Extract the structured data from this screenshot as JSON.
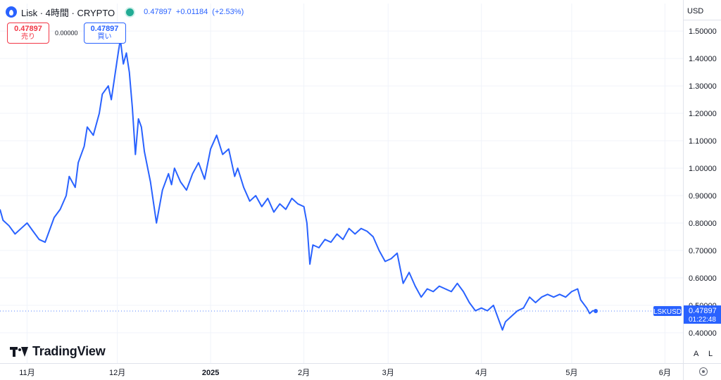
{
  "header": {
    "title": "Lisk · 4時間 · CRYPTO",
    "last": "0.47897",
    "change": "+0.01184",
    "change_pct": "(+2.53%)",
    "accent": "#2962ff",
    "live_color": "#22ab94"
  },
  "trade": {
    "sell_value": "0.47897",
    "sell_label": "売り",
    "spread": "0.00000",
    "buy_value": "0.47897",
    "buy_label": "買い",
    "sell_color": "#f23645",
    "buy_color": "#2962ff"
  },
  "currency": "USD",
  "branding": "TradingView",
  "scale_buttons": {
    "auto": "A",
    "log": "L"
  },
  "icons": {
    "logo": "lisk-drop-icon",
    "live": "live-status-icon",
    "settings": "gear-icon"
  },
  "chart_data": {
    "type": "line",
    "symbol": "LSKUSD",
    "line_color": "#2962ff",
    "ylim": [
      0.38,
      1.55
    ],
    "yticks": [
      "1.50000",
      "1.40000",
      "1.30000",
      "1.20000",
      "1.10000",
      "1.00000",
      "0.90000",
      "0.80000",
      "0.70000",
      "0.60000",
      "0.50000",
      "0.40000"
    ],
    "ytick_values": [
      1.5,
      1.4,
      1.3,
      1.2,
      1.1,
      1.0,
      0.9,
      0.8,
      0.7,
      0.6,
      0.5,
      0.4
    ],
    "xlim": [
      "2024-10-23",
      "2025-06-07"
    ],
    "xticks": [
      {
        "date": "2024-11-01",
        "label": "11月",
        "bold": false
      },
      {
        "date": "2024-12-01",
        "label": "12月",
        "bold": false
      },
      {
        "date": "2025-01-01",
        "label": "2025",
        "bold": true
      },
      {
        "date": "2025-02-01",
        "label": "2月",
        "bold": false
      },
      {
        "date": "2025-03-01",
        "label": "3月",
        "bold": false
      },
      {
        "date": "2025-04-01",
        "label": "4月",
        "bold": false
      },
      {
        "date": "2025-05-01",
        "label": "5月",
        "bold": false
      },
      {
        "date": "2025-06-01",
        "label": "6月",
        "bold": false
      }
    ],
    "grid": true,
    "last_price": "0.47897",
    "last_value": 0.47897,
    "countdown": "01:22:48",
    "series": [
      {
        "x": [
          "2024-10-23",
          "2024-10-24",
          "2024-10-26",
          "2024-10-28",
          "2024-10-30",
          "2024-11-01",
          "2024-11-03",
          "2024-11-05",
          "2024-11-07",
          "2024-11-08",
          "2024-11-10",
          "2024-11-12",
          "2024-11-14",
          "2024-11-15",
          "2024-11-17",
          "2024-11-18",
          "2024-11-20",
          "2024-11-21",
          "2024-11-23",
          "2024-11-25",
          "2024-11-26",
          "2024-11-28",
          "2024-11-29",
          "2024-12-01",
          "2024-12-02",
          "2024-12-03",
          "2024-12-04",
          "2024-12-05",
          "2024-12-06",
          "2024-12-07",
          "2024-12-08",
          "2024-12-09",
          "2024-12-10",
          "2024-12-12",
          "2024-12-14",
          "2024-12-16",
          "2024-12-18",
          "2024-12-19",
          "2024-12-20",
          "2024-12-22",
          "2024-12-24",
          "2024-12-26",
          "2024-12-28",
          "2024-12-30",
          "2025-01-01",
          "2025-01-03",
          "2025-01-05",
          "2025-01-07",
          "2025-01-09",
          "2025-01-10",
          "2025-01-12",
          "2025-01-14",
          "2025-01-16",
          "2025-01-18",
          "2025-01-20",
          "2025-01-22",
          "2025-01-24",
          "2025-01-26",
          "2025-01-28",
          "2025-01-30",
          "2025-02-01",
          "2025-02-02",
          "2025-02-03",
          "2025-02-04",
          "2025-02-06",
          "2025-02-08",
          "2025-02-10",
          "2025-02-12",
          "2025-02-14",
          "2025-02-16",
          "2025-02-18",
          "2025-02-20",
          "2025-02-22",
          "2025-02-24",
          "2025-02-26",
          "2025-02-28",
          "2025-03-02",
          "2025-03-04",
          "2025-03-06",
          "2025-03-08",
          "2025-03-10",
          "2025-03-12",
          "2025-03-14",
          "2025-03-16",
          "2025-03-18",
          "2025-03-20",
          "2025-03-22",
          "2025-03-24",
          "2025-03-26",
          "2025-03-28",
          "2025-03-30",
          "2025-04-01",
          "2025-04-03",
          "2025-04-05",
          "2025-04-07",
          "2025-04-08",
          "2025-04-09",
          "2025-04-11",
          "2025-04-13",
          "2025-04-15",
          "2025-04-17",
          "2025-04-19",
          "2025-04-21",
          "2025-04-23",
          "2025-04-25",
          "2025-04-27",
          "2025-04-29",
          "2025-05-01",
          "2025-05-03",
          "2025-05-04",
          "2025-05-06",
          "2025-05-07",
          "2025-05-08",
          "2025-05-09"
        ],
        "values": [
          0.85,
          0.81,
          0.79,
          0.76,
          0.78,
          0.8,
          0.77,
          0.74,
          0.73,
          0.76,
          0.82,
          0.85,
          0.9,
          0.97,
          0.93,
          1.02,
          1.08,
          1.15,
          1.12,
          1.2,
          1.27,
          1.3,
          1.25,
          1.4,
          1.47,
          1.38,
          1.42,
          1.35,
          1.22,
          1.05,
          1.18,
          1.15,
          1.06,
          0.95,
          0.8,
          0.92,
          0.98,
          0.94,
          1.0,
          0.95,
          0.92,
          0.98,
          1.02,
          0.96,
          1.07,
          1.12,
          1.05,
          1.07,
          0.97,
          1.0,
          0.93,
          0.88,
          0.9,
          0.86,
          0.89,
          0.84,
          0.87,
          0.85,
          0.89,
          0.87,
          0.86,
          0.8,
          0.65,
          0.72,
          0.71,
          0.74,
          0.73,
          0.76,
          0.74,
          0.78,
          0.76,
          0.78,
          0.77,
          0.75,
          0.7,
          0.66,
          0.67,
          0.69,
          0.58,
          0.62,
          0.57,
          0.53,
          0.56,
          0.55,
          0.57,
          0.56,
          0.55,
          0.58,
          0.55,
          0.51,
          0.48,
          0.49,
          0.48,
          0.5,
          0.44,
          0.41,
          0.44,
          0.46,
          0.48,
          0.49,
          0.53,
          0.51,
          0.53,
          0.54,
          0.53,
          0.54,
          0.53,
          0.55,
          0.56,
          0.52,
          0.49,
          0.47,
          0.48,
          0.48
        ]
      }
    ]
  }
}
